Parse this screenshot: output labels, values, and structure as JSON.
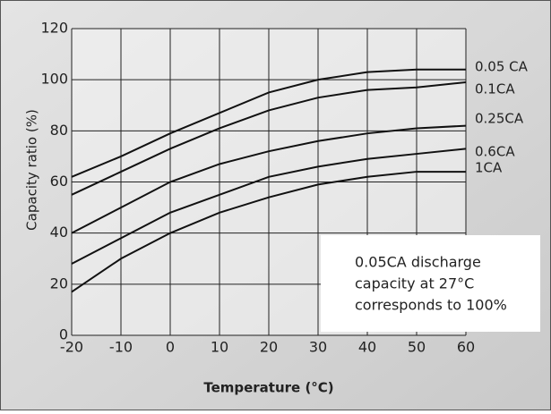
{
  "chart_data": {
    "type": "line",
    "x_label": "Temperature (°C)",
    "y_label": "Capacity ratio (%)",
    "x": [
      -20,
      -10,
      0,
      10,
      20,
      30,
      40,
      50,
      60
    ],
    "series": [
      {
        "name": "0.05 CA",
        "color": "#111111",
        "values": [
          62,
          70,
          79,
          87,
          95,
          100,
          103,
          104,
          104
        ]
      },
      {
        "name": "0.1CA",
        "color": "#111111",
        "values": [
          55,
          64,
          73,
          81,
          88,
          93,
          96,
          97,
          99
        ]
      },
      {
        "name": "0.25CA",
        "color": "#111111",
        "values": [
          40,
          50,
          60,
          67,
          72,
          76,
          79,
          81,
          82
        ]
      },
      {
        "name": "0.6CA",
        "color": "#111111",
        "values": [
          28,
          38,
          48,
          55,
          62,
          66,
          69,
          71,
          73
        ]
      },
      {
        "name": "1CA",
        "color": "#111111",
        "values": [
          17,
          30,
          40,
          48,
          54,
          59,
          62,
          64,
          64
        ]
      }
    ],
    "annotation": [
      "0.05CA discharge",
      "capacity at 27°C",
      "corresponds to 100%"
    ],
    "xlim": [
      -20,
      60
    ],
    "xticks": [
      -20,
      -10,
      0,
      10,
      20,
      30,
      40,
      50,
      60
    ],
    "ylim": [
      0,
      120
    ],
    "yticks": [
      0,
      20,
      40,
      60,
      80,
      100,
      120
    ],
    "grid": true
  }
}
